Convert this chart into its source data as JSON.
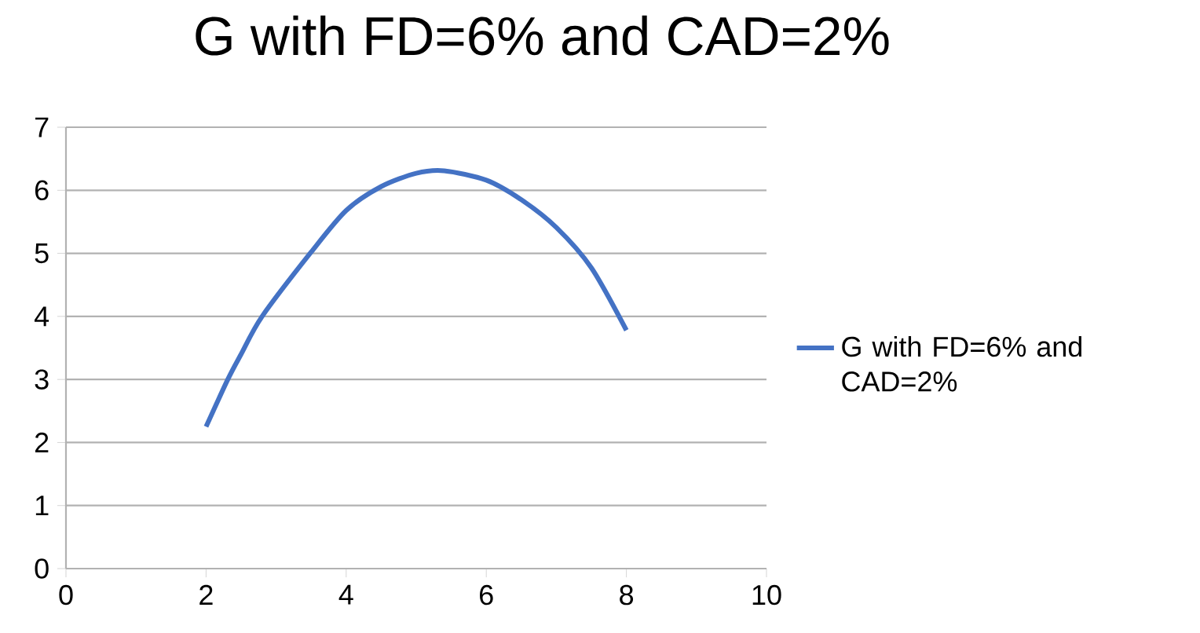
{
  "chart_data": {
    "type": "line",
    "title": "G with FD=6% and CAD=2%",
    "x": [
      2,
      2.31,
      2.5,
      2.8,
      3.5,
      4,
      4.5,
      5,
      5.4,
      6,
      6.5,
      7,
      7.5,
      8
    ],
    "series": [
      {
        "name": "G with FD=6% and CAD=2%",
        "color": "#4472c4",
        "values": [
          2.25,
          3,
          3.4,
          4,
          5.02,
          5.68,
          6.06,
          6.27,
          6.31,
          6.16,
          5.85,
          5.41,
          4.77,
          3.78
        ]
      }
    ],
    "xlim": [
      0,
      10
    ],
    "xticks": [
      0,
      2,
      4,
      6,
      8,
      10
    ],
    "ylim": [
      0,
      7
    ],
    "yticks": [
      0,
      1,
      2,
      3,
      4,
      5,
      6,
      7
    ],
    "grid": "y",
    "legend": "right",
    "marker": "none",
    "line_style": "solid"
  }
}
